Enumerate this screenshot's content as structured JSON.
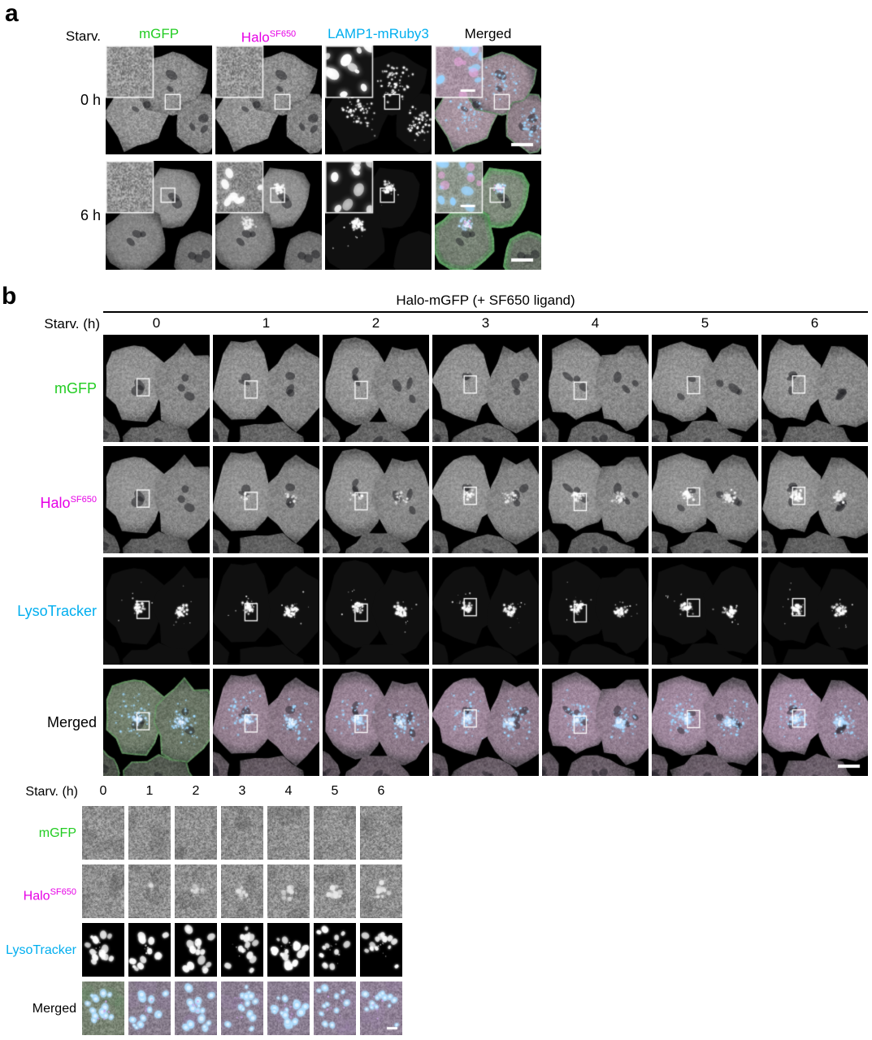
{
  "colors": {
    "gfp": "#22cc22",
    "halo": "#e600e6",
    "cyan": "#00aeef",
    "black": "#000000"
  },
  "panel_a": {
    "label": "a",
    "row_axis_label": "Starv.",
    "channels": [
      {
        "text": "mGFP",
        "sup": ""
      },
      {
        "text": "Halo",
        "sup": "SF650"
      },
      {
        "text": "LAMP1-mRuby3",
        "sup": ""
      },
      {
        "text": "Merged",
        "sup": ""
      }
    ],
    "rows": [
      {
        "label": "0 h"
      },
      {
        "label": "6 h"
      }
    ]
  },
  "panel_b": {
    "label": "b",
    "title": "Halo-mGFP (+ SF650 ligand)",
    "col_axis_label": "Starv. (h)",
    "timepoints": [
      "0",
      "1",
      "2",
      "3",
      "4",
      "5",
      "6"
    ],
    "channels": [
      {
        "text": "mGFP",
        "sup": ""
      },
      {
        "text": "Halo",
        "sup": "SF650"
      },
      {
        "text": "LysoTracker",
        "sup": ""
      },
      {
        "text": "Merged",
        "sup": ""
      }
    ]
  },
  "zoom_section": {
    "col_axis_label": "Starv. (h)",
    "timepoints": [
      "0",
      "1",
      "2",
      "3",
      "4",
      "5",
      "6"
    ],
    "channels": [
      {
        "text": "mGFP",
        "sup": ""
      },
      {
        "text": "Halo",
        "sup": "SF650"
      },
      {
        "text": "LysoTracker",
        "sup": ""
      },
      {
        "text": "Merged",
        "sup": ""
      }
    ]
  }
}
